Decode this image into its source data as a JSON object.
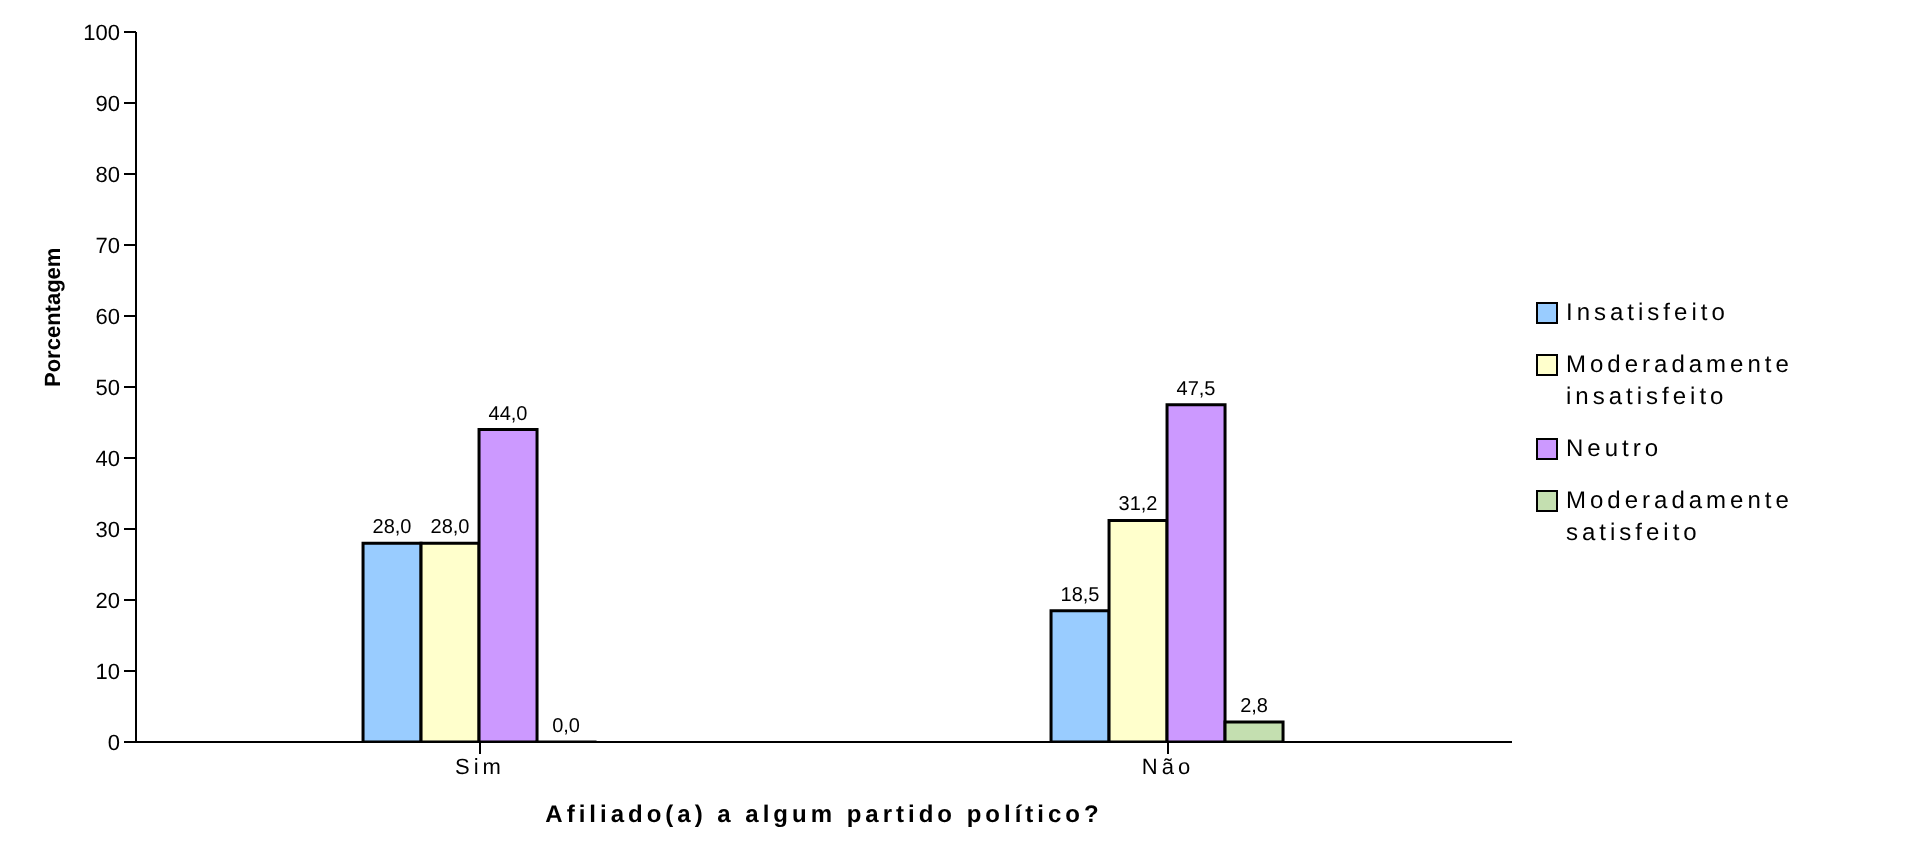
{
  "chart_data": {
    "type": "bar",
    "xlabel": "Afiliado(a) a algum partido político?",
    "ylabel": "Porcentagem",
    "categories": [
      "Sim",
      "Não"
    ],
    "series": [
      {
        "name": "Insatisfeito",
        "color": "#99ccff",
        "values": [
          28,
          18.5
        ],
        "value_labels": [
          "28,0",
          "18,5"
        ]
      },
      {
        "name": "Moderadamente insatisfeito",
        "color": "#ffffcc",
        "values": [
          28,
          31.2
        ],
        "value_labels": [
          "28,0",
          "31,2"
        ]
      },
      {
        "name": "Neutro",
        "color": "#cc99ff",
        "values": [
          44,
          47.5
        ],
        "value_labels": [
          "44,0",
          "47,5"
        ]
      },
      {
        "name": "Moderadamente satisfeito",
        "color": "#c4dfb0",
        "values": [
          0,
          2.8
        ],
        "value_labels": [
          "0,0",
          "2,8"
        ]
      }
    ],
    "ylim": [
      0,
      100
    ],
    "yticks": [
      0,
      10,
      20,
      30,
      40,
      50,
      60,
      70,
      80,
      90,
      100
    ],
    "grid": false,
    "legend": "right"
  }
}
